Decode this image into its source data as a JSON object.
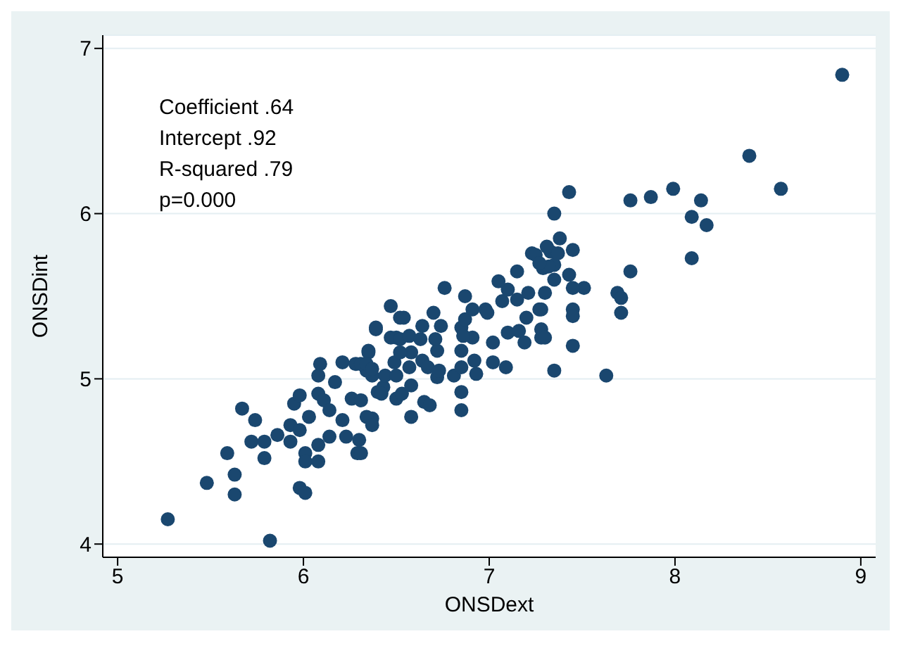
{
  "chart_data": {
    "type": "scatter",
    "xlabel": "ONSDext",
    "ylabel": "ONSDint",
    "annotations": [
      "Coefficient .64",
      "Intercept .92",
      "R-squared .79",
      "p=0.000"
    ],
    "xlim": [
      4.92,
      9.08
    ],
    "xticks": [
      5,
      6,
      7,
      8,
      9
    ],
    "ylim": [
      3.92,
      7.08
    ],
    "yticks": [
      4,
      5,
      6,
      7
    ],
    "grid": "y",
    "marker": "circle",
    "legend": false,
    "series": [
      {
        "color": "#1a476f",
        "x": [
          5.27,
          5.82,
          5.48,
          5.63,
          5.63,
          5.59,
          5.67,
          5.74,
          5.72,
          5.79,
          5.79,
          5.86,
          5.98,
          6.01,
          5.93,
          5.98,
          5.93,
          6.03,
          6.01,
          6.01,
          6.08,
          6.08,
          6.14,
          6.23,
          6.21,
          6.29,
          5.95,
          5.98,
          6.08,
          6.11,
          6.14,
          6.26,
          6.17,
          6.08,
          6.09,
          6.21,
          6.28,
          6.35,
          6.37,
          6.39,
          6.34,
          6.37,
          6.4,
          6.31,
          6.34,
          6.31,
          6.34,
          6.37,
          6.31,
          6.3,
          6.47,
          6.5,
          6.47,
          6.52,
          6.54,
          6.39,
          6.35,
          6.37,
          6.43,
          6.42,
          6.44,
          6.5,
          6.5,
          6.53,
          6.58,
          6.65,
          6.68,
          6.58,
          6.57,
          6.58,
          6.49,
          6.52,
          6.52,
          6.57,
          6.63,
          6.64,
          6.64,
          6.67,
          6.72,
          6.73,
          6.81,
          6.85,
          6.85,
          6.85,
          6.93,
          6.92,
          6.85,
          6.72,
          6.71,
          6.74,
          6.7,
          6.76,
          6.85,
          6.87,
          6.87,
          6.91,
          6.91,
          6.98,
          6.99,
          7.02,
          7.02,
          7.09,
          7.1,
          7.16,
          7.19,
          7.2,
          7.07,
          7.15,
          7.1,
          7.05,
          7.15,
          7.23,
          7.33,
          7.29,
          7.35,
          7.21,
          7.27,
          7.28,
          6.86,
          7.31,
          7.25,
          7.32,
          7.27,
          7.37,
          7.38,
          7.45,
          7.43,
          7.35,
          7.3,
          7.28,
          7.28,
          7.3,
          7.45,
          7.51,
          7.45,
          7.45,
          7.45,
          7.35,
          7.63,
          7.71,
          7.69,
          7.71,
          7.76,
          8.09,
          8.17,
          8.09,
          8.14,
          7.99,
          7.87,
          7.76,
          7.35,
          7.43,
          8.57,
          8.4,
          8.9
        ],
        "values": [
          4.15,
          4.02,
          4.37,
          4.42,
          4.3,
          4.55,
          4.82,
          4.75,
          4.62,
          4.62,
          4.52,
          4.66,
          4.34,
          4.31,
          4.72,
          4.69,
          4.62,
          4.77,
          4.55,
          4.5,
          4.6,
          4.5,
          4.65,
          4.65,
          4.75,
          4.55,
          4.85,
          4.9,
          4.91,
          4.87,
          4.81,
          4.88,
          4.98,
          5.02,
          5.09,
          5.1,
          5.09,
          5.16,
          5.02,
          5.3,
          5.05,
          4.76,
          4.92,
          5.09,
          5.09,
          4.87,
          4.77,
          4.72,
          4.55,
          4.63,
          5.25,
          5.25,
          5.44,
          5.37,
          5.37,
          5.31,
          5.17,
          5.06,
          4.95,
          4.91,
          5.02,
          5.02,
          4.88,
          4.91,
          4.96,
          4.86,
          4.84,
          4.77,
          5.07,
          5.16,
          5.1,
          5.16,
          5.24,
          5.26,
          5.24,
          5.32,
          5.11,
          5.07,
          5.01,
          5.05,
          5.02,
          4.92,
          4.81,
          5.07,
          5.03,
          5.11,
          5.17,
          5.17,
          5.24,
          5.32,
          5.4,
          5.55,
          5.31,
          5.36,
          5.5,
          5.42,
          5.25,
          5.42,
          5.4,
          5.22,
          5.1,
          5.07,
          5.28,
          5.29,
          5.22,
          5.37,
          5.47,
          5.48,
          5.54,
          5.59,
          5.65,
          5.76,
          5.77,
          5.67,
          5.69,
          5.52,
          5.42,
          5.25,
          5.26,
          5.8,
          5.75,
          5.68,
          5.7,
          5.76,
          5.85,
          5.78,
          5.63,
          5.6,
          5.52,
          5.42,
          5.3,
          5.25,
          5.2,
          5.55,
          5.55,
          5.42,
          5.38,
          5.05,
          5.02,
          5.4,
          5.52,
          5.49,
          5.65,
          5.73,
          5.93,
          5.98,
          6.08,
          6.15,
          6.1,
          6.08,
          6.0,
          6.13,
          6.15,
          6.35,
          6.84
        ]
      }
    ]
  }
}
